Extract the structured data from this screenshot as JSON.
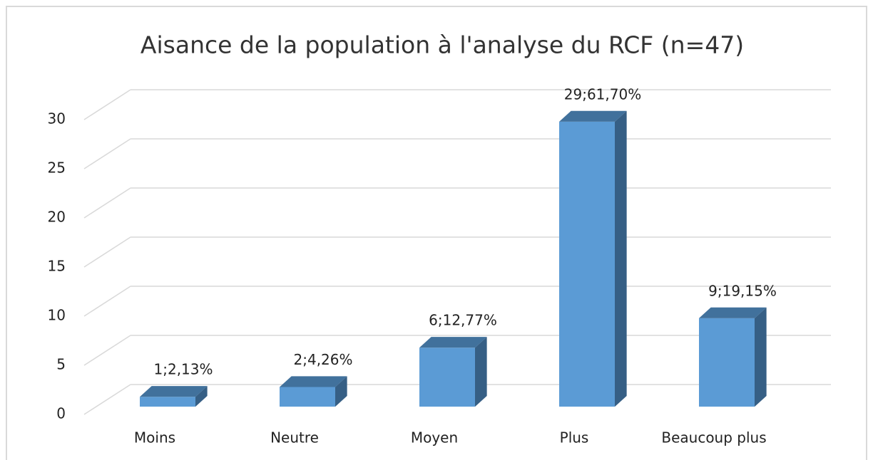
{
  "chart_data": {
    "type": "bar3d",
    "title": "Aisance de la population à l'analyse du RCF (n=47)",
    "categories": [
      "Moins",
      "Neutre",
      "Moyen",
      "Plus",
      "Beaucoup plus"
    ],
    "values": [
      1,
      2,
      6,
      29,
      9
    ],
    "value_labels": [
      "1;2,13%",
      "2;4,26%",
      "6;12,77%",
      "29;61,70%",
      "9;19,15%"
    ],
    "color": "#5b9bd5",
    "ylim": [
      0,
      30
    ],
    "yticks": [
      0,
      5,
      10,
      15,
      20,
      25,
      30
    ],
    "grid": true
  }
}
